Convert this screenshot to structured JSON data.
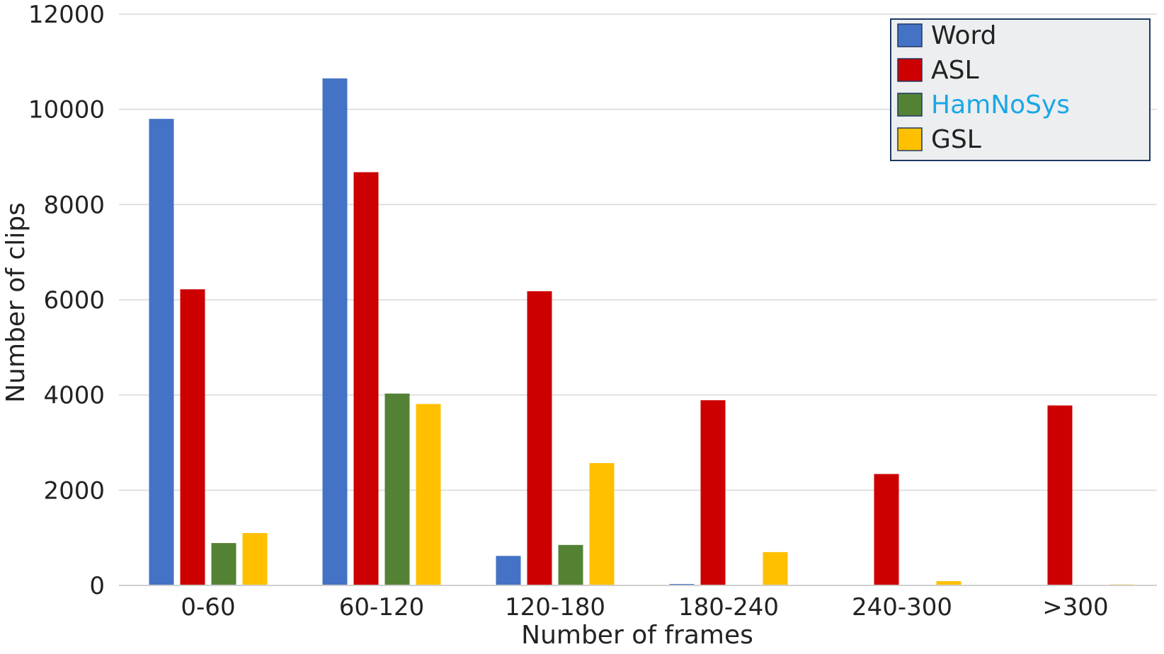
{
  "chart_data": {
    "type": "bar",
    "title": "",
    "xlabel": "Number of frames",
    "ylabel": "Number of clips",
    "categories": [
      "0-60",
      "60-120",
      "120-180",
      "180-240",
      "240-300",
      ">300"
    ],
    "series": [
      {
        "name": "Word",
        "color": "#4472C4",
        "values": [
          9800,
          10650,
          620,
          30,
          10,
          0
        ]
      },
      {
        "name": "ASL",
        "color": "#CC0000",
        "values": [
          6220,
          8680,
          6180,
          3890,
          2340,
          3780
        ]
      },
      {
        "name": "HamNoSys",
        "color": "#548235",
        "label_color": "#1AA7E6",
        "values": [
          890,
          4030,
          850,
          0,
          0,
          0
        ]
      },
      {
        "name": "GSL",
        "color": "#FFC000",
        "values": [
          1100,
          3810,
          2570,
          700,
          90,
          20
        ]
      }
    ],
    "ylim": [
      0,
      12000
    ],
    "yticks": [
      0,
      2000,
      4000,
      6000,
      8000,
      10000,
      12000
    ],
    "grid": true,
    "legend_position": "top-right"
  }
}
